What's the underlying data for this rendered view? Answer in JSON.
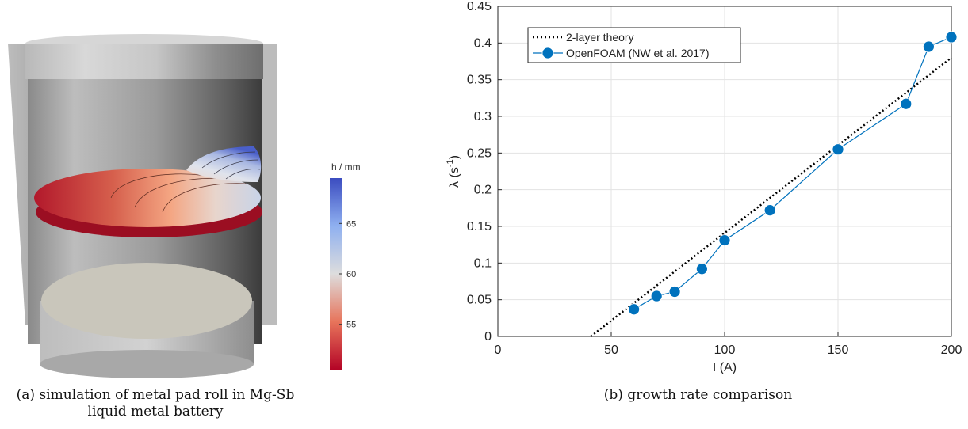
{
  "figure": {
    "panel_a": {
      "caption_label": "(a)",
      "caption_text": "simulation of metal pad roll in Mg-Sb liquid metal battery",
      "caption_line1": "(a) simulation of metal pad roll in Mg-Sb",
      "caption_line2": "liquid metal battery",
      "colorbar": {
        "title": "h / mm",
        "ticks": [
          "65",
          "60",
          "55"
        ],
        "tick_values": [
          65,
          60,
          55
        ],
        "range": [
          50.5,
          69.5
        ],
        "colors": {
          "high": "#3b4cc0",
          "mid": "#dddddd",
          "low": "#b40426"
        }
      }
    },
    "panel_b": {
      "caption_line1": "(b) growth rate comparison"
    }
  },
  "chart_data": {
    "type": "line",
    "xlabel": "I (A)",
    "ylabel": "λ (s⁻¹)",
    "ylabel_main": "λ (s",
    "ylabel_exp": "-1",
    "ylabel_close": ")",
    "xlim": [
      0,
      200
    ],
    "ylim": [
      0,
      0.45
    ],
    "x_ticks": [
      0,
      50,
      100,
      150,
      200
    ],
    "x_tick_labels": [
      "0",
      "50",
      "100",
      "150",
      "200"
    ],
    "y_ticks": [
      0,
      0.05,
      0.1,
      0.15,
      0.2,
      0.25,
      0.3,
      0.35,
      0.4,
      0.45
    ],
    "y_tick_labels": [
      "0",
      "0.05",
      "0.1",
      "0.15",
      "0.2",
      "0.25",
      "0.3",
      "0.35",
      "0.4",
      "0.45"
    ],
    "grid": true,
    "legend_position": "top-left",
    "series": [
      {
        "name": "2-layer theory",
        "style": "dotted",
        "color": "#000000",
        "x": [
          41,
          200
        ],
        "y": [
          0,
          0.38
        ]
      },
      {
        "name": "OpenFOAM (NW et al. 2017)",
        "style": "solid-markers",
        "color": "#0072bd",
        "x": [
          60,
          70,
          78,
          90,
          100,
          120,
          150,
          180,
          190,
          200
        ],
        "y": [
          0.037,
          0.055,
          0.061,
          0.092,
          0.131,
          0.172,
          0.255,
          0.317,
          0.395,
          0.408
        ]
      }
    ]
  }
}
